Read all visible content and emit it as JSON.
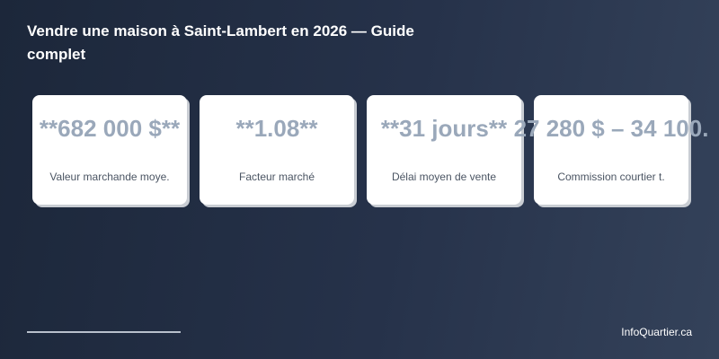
{
  "header": {
    "title": "Vendre une maison à Saint-Lambert en 2026 — Guide complet"
  },
  "cards": [
    {
      "value": "**682 000 $**",
      "label": "Valeur marchande moye."
    },
    {
      "value": "**1.08**",
      "label": "Facteur marché"
    },
    {
      "value": "**31 jours**",
      "label": "Délai moyen de vente"
    },
    {
      "value": "27 280 $ – 34 100.",
      "label": "Commission courtier t."
    }
  ],
  "footer": {
    "brand": "InfoQuartier.ca"
  }
}
